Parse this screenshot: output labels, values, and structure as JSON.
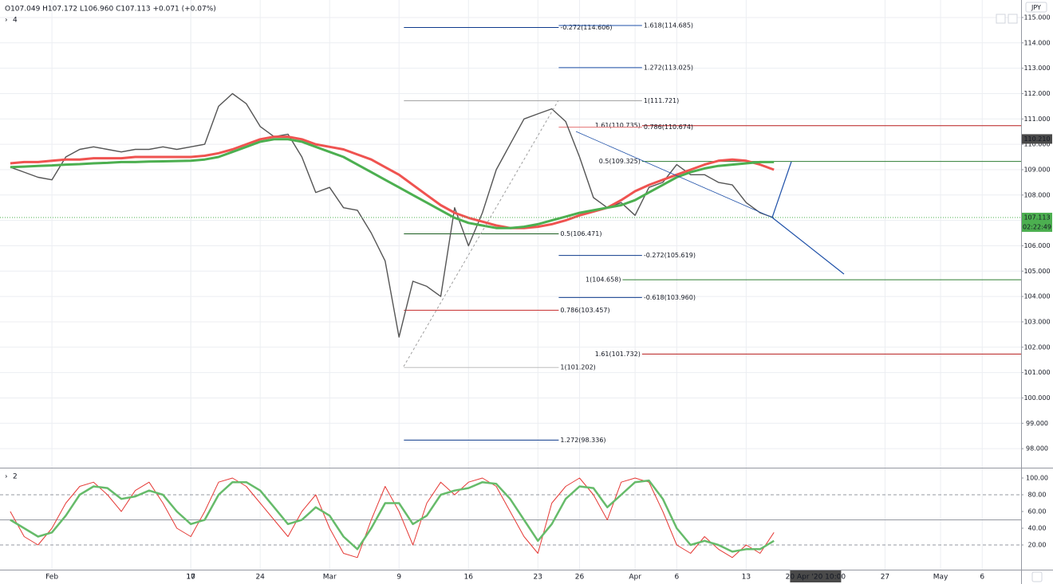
{
  "header": {
    "ohlc": "O107.049 H107.172 L106.960 C107.113 +0.071 (+0.07%)",
    "pane_main": "4",
    "pane_osc": "2",
    "currency": "JPY"
  },
  "chart_data": [
    {
      "type": "line",
      "x": [
        -3,
        -2,
        -1,
        0,
        1,
        2,
        3,
        4,
        5,
        6,
        7,
        8,
        9,
        10,
        11,
        12,
        13,
        14,
        15,
        16,
        17,
        18,
        19,
        20,
        21,
        22,
        23,
        24,
        25,
        26,
        27,
        28,
        29,
        30,
        31,
        32,
        33,
        34,
        35,
        36,
        37,
        38,
        39,
        40,
        41,
        42,
        43,
        44,
        45,
        46,
        47,
        48,
        49,
        50,
        51,
        52
      ],
      "series": [
        {
          "color": "#555555",
          "width": 1.4,
          "values": [
            109.1,
            108.9,
            108.7,
            108.6,
            109.5,
            109.8,
            109.9,
            109.8,
            109.7,
            109.8,
            109.8,
            109.9,
            109.8,
            109.9,
            110.0,
            111.5,
            112.0,
            111.6,
            110.7,
            110.3,
            110.4,
            109.5,
            108.1,
            108.3,
            107.5,
            107.4,
            106.5,
            105.4,
            102.4,
            104.6,
            104.4,
            104.0,
            107.5,
            106.0,
            107.3,
            109.0,
            110.0,
            111.0,
            111.2,
            111.4,
            110.9,
            109.5,
            107.9,
            107.5,
            107.7,
            107.2,
            108.3,
            108.5,
            109.2,
            108.8,
            108.8,
            108.5,
            108.4,
            107.7,
            107.3,
            107.1
          ]
        },
        {
          "color": "#ef5350",
          "width": 3,
          "values": [
            109.25,
            109.3,
            109.3,
            109.35,
            109.4,
            109.4,
            109.45,
            109.45,
            109.45,
            109.5,
            109.5,
            109.5,
            109.5,
            109.5,
            109.55,
            109.65,
            109.8,
            110.0,
            110.2,
            110.3,
            110.3,
            110.2,
            110.0,
            109.9,
            109.8,
            109.6,
            109.4,
            109.1,
            108.8,
            108.4,
            108.0,
            107.6,
            107.3,
            107.1,
            106.95,
            106.8,
            106.7,
            106.7,
            106.75,
            106.85,
            107.0,
            107.2,
            107.35,
            107.5,
            107.8,
            108.15,
            108.4,
            108.6,
            108.8,
            109.0,
            109.2,
            109.35,
            109.4,
            109.35,
            109.2,
            109.0
          ]
        },
        {
          "color": "#4caf50",
          "width": 3,
          "values": [
            109.1,
            109.12,
            109.15,
            109.17,
            109.2,
            109.22,
            109.25,
            109.27,
            109.3,
            109.3,
            109.32,
            109.33,
            109.34,
            109.35,
            109.4,
            109.5,
            109.7,
            109.9,
            110.1,
            110.2,
            110.2,
            110.1,
            109.9,
            109.7,
            109.5,
            109.2,
            108.9,
            108.6,
            108.3,
            108.0,
            107.7,
            107.4,
            107.1,
            106.9,
            106.8,
            106.7,
            106.7,
            106.75,
            106.85,
            107.0,
            107.15,
            107.3,
            107.4,
            107.5,
            107.6,
            107.8,
            108.1,
            108.4,
            108.7,
            108.9,
            109.05,
            109.15,
            109.2,
            109.25,
            109.3,
            109.3
          ]
        }
      ],
      "xlim": [
        -3.74,
        69.8
      ],
      "ylim": [
        97.25,
        115.69
      ],
      "xticks": [
        {
          "value": 0,
          "label": "Feb"
        },
        10,
        {
          "value": 10,
          "label": "17"
        },
        {
          "value": 15,
          "label": "24"
        },
        {
          "value": 20,
          "label": "Mar"
        },
        {
          "value": 25,
          "label": "9"
        },
        {
          "value": 30,
          "label": "16"
        },
        {
          "value": 35,
          "label": "23"
        },
        {
          "value": 38,
          "label": "26"
        },
        {
          "value": 42,
          "label": "Apr"
        },
        {
          "value": 45,
          "label": "6"
        },
        {
          "value": 50,
          "label": "13"
        },
        {
          "value": 60,
          "label": "27"
        },
        {
          "value": 64,
          "label": "May"
        },
        {
          "value": 67,
          "label": "6"
        }
      ],
      "yticks": [
        {
          "value": 115,
          "label": "115.000"
        },
        {
          "value": 114,
          "label": "114.000"
        },
        {
          "value": 113,
          "label": "113.000"
        },
        {
          "value": 112,
          "label": "112.000"
        },
        {
          "value": 111,
          "label": "111.000"
        },
        {
          "value": 110,
          "label": "110.000"
        },
        {
          "value": 109,
          "label": "109.000"
        },
        {
          "value": 108,
          "label": "108.000"
        },
        {
          "value": 107,
          "label": "107.000"
        },
        {
          "value": 106,
          "label": "106.000"
        },
        {
          "value": 105,
          "label": "105.000"
        },
        {
          "value": 104,
          "label": "104.000"
        },
        {
          "value": 103,
          "label": "103.000"
        },
        {
          "value": 102,
          "label": "102.000"
        },
        {
          "value": 101,
          "label": "101.000"
        },
        {
          "value": 100,
          "label": "100.000"
        },
        {
          "value": 99,
          "label": "99.000"
        },
        {
          "value": 98,
          "label": "98.000"
        }
      ],
      "grid": true,
      "cursor": {
        "value": 55,
        "label": "20 Apr '20  10:00"
      },
      "price_tags": [
        {
          "value": 110.21,
          "label": "110.210",
          "color": "#4a4a4a"
        },
        {
          "value": 107.113,
          "label": "107.113",
          "color": "#4caf50",
          "countdown": "02:22:49"
        }
      ],
      "levels": [
        {
          "text": "-0.272(114.606)",
          "price": 114.606,
          "color": "#0d3a8c",
          "x_start": 25.35,
          "x_end": 36.5
        },
        {
          "text": "1.618(114.685)",
          "price": 114.685,
          "color": "#1e50a8",
          "x_start": 36.5,
          "x_end": 42.5
        },
        {
          "text": "1.272(113.025)",
          "price": 113.025,
          "color": "#1e50a8",
          "x_start": 36.5,
          "x_end": 42.5
        },
        {
          "text": "1(111.721)",
          "price": 111.721,
          "color": "#9e9e9e",
          "x_start": 25.35,
          "x_end": 42.5
        },
        {
          "text": "1.61(110.735)",
          "price": 110.735,
          "color": "#b71c1c",
          "x_start": 42.5,
          "extend_right": true
        },
        {
          "text": "0.786(110.674)",
          "price": 110.674,
          "color": "#e57373",
          "x_start": 36.5,
          "x_end": 42.5
        },
        {
          "text": "0.5(109.325)",
          "price": 109.325,
          "color": "#2e7d32",
          "x_start": 42.5,
          "extend_right": true
        },
        {
          "text": "0.5(106.471)",
          "price": 106.471,
          "color": "#1b5e20",
          "x_start": 25.35,
          "x_end": 36.5
        },
        {
          "text": "-0.272(105.619)",
          "price": 105.619,
          "color": "#0d3a8c",
          "x_start": 36.5,
          "x_end": 42.5
        },
        {
          "text": "1(104.658)",
          "price": 104.658,
          "color": "#2e7d32",
          "x_start": 41.1,
          "extend_right": true
        },
        {
          "text": "-0.618(103.960)",
          "price": 103.96,
          "color": "#0d3a8c",
          "x_start": 36.5,
          "x_end": 42.5
        },
        {
          "text": "0.786(103.457)",
          "price": 103.457,
          "color": "#c62828",
          "x_start": 25.35,
          "x_end": 36.5
        },
        {
          "text": "1.61(101.732)",
          "price": 101.732,
          "color": "#b71c1c",
          "x_start": 42.5,
          "extend_right": true
        },
        {
          "text": "1(101.202)",
          "price": 101.202,
          "color": "#bdbdbd",
          "x_start": 25.35,
          "x_end": 36.5
        },
        {
          "text": "1.272(98.336)",
          "price": 98.336,
          "color": "#0d3a8c",
          "x_start": 25.35,
          "x_end": 36.5
        }
      ]
    },
    {
      "type": "line",
      "series": [
        {
          "color": "#e53935",
          "width": 1,
          "values": [
            60,
            30,
            20,
            40,
            70,
            90,
            95,
            80,
            60,
            85,
            95,
            70,
            40,
            30,
            60,
            95,
            100,
            90,
            70,
            50,
            30,
            60,
            80,
            40,
            10,
            5,
            50,
            90,
            60,
            20,
            70,
            95,
            80,
            95,
            100,
            90,
            60,
            30,
            10,
            70,
            90,
            100,
            80,
            50,
            95,
            100,
            95,
            60,
            20,
            10,
            30,
            15,
            5,
            20,
            10,
            35
          ]
        },
        {
          "color": "#66bb6a",
          "width": 2.5,
          "values": [
            50,
            40,
            30,
            35,
            55,
            80,
            90,
            88,
            75,
            78,
            85,
            80,
            60,
            45,
            50,
            80,
            95,
            95,
            85,
            65,
            45,
            50,
            65,
            55,
            30,
            15,
            40,
            70,
            70,
            45,
            55,
            80,
            85,
            88,
            95,
            93,
            75,
            50,
            25,
            45,
            75,
            90,
            88,
            65,
            80,
            95,
            97,
            75,
            40,
            20,
            25,
            20,
            12,
            15,
            15,
            25
          ]
        }
      ],
      "ylim": [
        -9.5,
        111.4
      ],
      "yticks": [
        {
          "value": 100,
          "label": "100.00"
        },
        {
          "value": 80,
          "label": "80.00"
        },
        {
          "value": 60,
          "label": "60.00"
        },
        {
          "value": 40,
          "label": "40.00"
        },
        {
          "value": 20,
          "label": "20.00"
        }
      ],
      "levels": [
        {
          "value": 80,
          "dash": true
        },
        {
          "value": 50,
          "dash": false
        },
        {
          "value": 20,
          "dash": true
        }
      ]
    }
  ]
}
